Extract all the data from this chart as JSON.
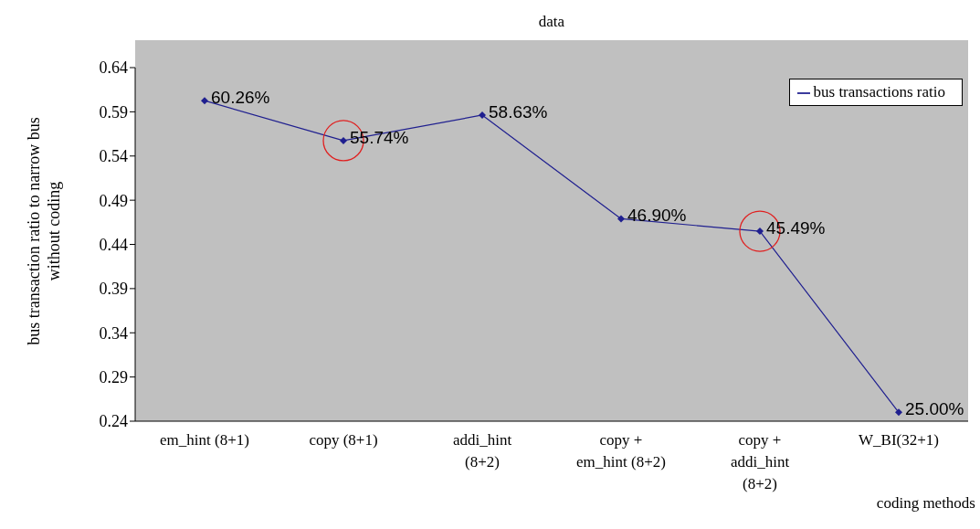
{
  "chart_data": {
    "type": "line",
    "title": "data",
    "xlabel": "coding methods",
    "ylabel": "bus transaction ratio to narrow bus\nwithout coding",
    "categories": [
      "em_hint (8+1)",
      "copy (8+1)",
      "addi_hint\n(8+2)",
      "copy +\nem_hint (8+2)",
      "copy +\naddi_hint\n(8+2)",
      "W_BI(32+1)"
    ],
    "series": [
      {
        "name": "bus transactions ratio",
        "color": "#1f1f8f",
        "values": [
          0.6026,
          0.5574,
          0.5863,
          0.469,
          0.4549,
          0.25
        ],
        "value_labels": [
          "60.26%",
          "55.74%",
          "58.63%",
          "46.90%",
          "45.49%",
          "25.00%"
        ]
      }
    ],
    "ylim": [
      0.24,
      0.64
    ],
    "yticks": [
      0.24,
      0.29,
      0.34,
      0.39,
      0.44,
      0.49,
      0.54,
      0.59,
      0.64
    ],
    "legend": "top right",
    "marker": "diamond",
    "grid": false
  }
}
